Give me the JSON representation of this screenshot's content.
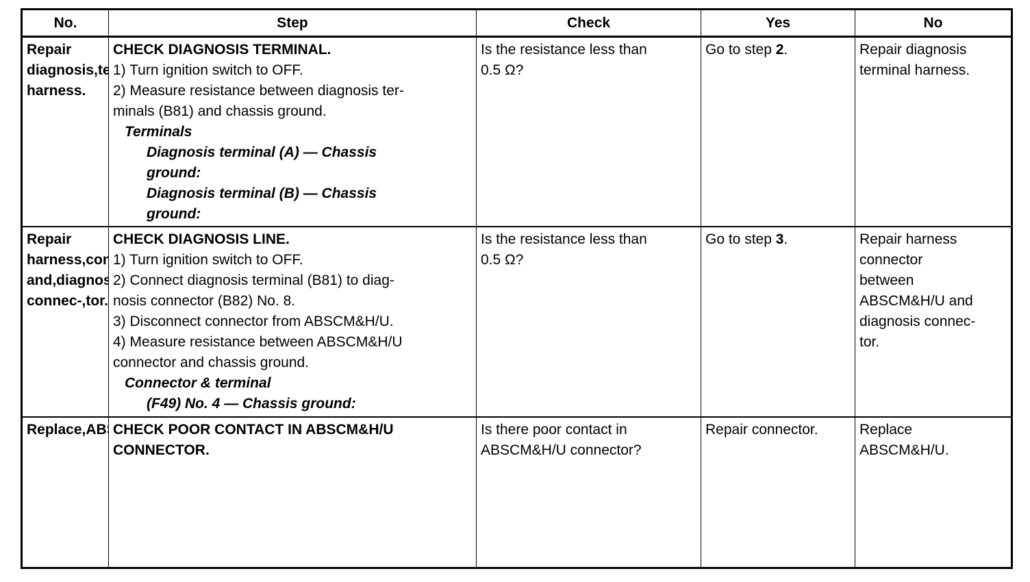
{
  "headers": {
    "no": "No.",
    "step": "Step",
    "check": "Check",
    "yes": "Yes",
    "no_col": "No"
  },
  "rows": [
    {
      "no": [
        "Repair diagnosis",
        "terminal harness."
      ],
      "title": "CHECK DIAGNOSIS TERMINAL.",
      "steps": [
        "1) Turn ignition switch to OFF.",
        "2) Measure resistance between diagnosis ter-",
        "minals (B81) and chassis ground."
      ],
      "spec_heading": "Terminals",
      "spec_lines": [
        "Diagnosis terminal (A) — Chassis",
        "ground:",
        "Diagnosis terminal (B) — Chassis",
        "ground:"
      ],
      "check": [
        "Is the resistance less than",
        "0.5 Ω?"
      ],
      "yes_prefix": "Go to step ",
      "yes_step": "2",
      "yes_suffix": "."
    },
    {
      "no": [
        "Repair harness",
        "connector",
        "between",
        "ABSCM&H/U and",
        "diagnosis connec-",
        "tor."
      ],
      "title": "CHECK DIAGNOSIS LINE.",
      "steps": [
        "1) Turn ignition switch to OFF.",
        "2) Connect diagnosis terminal (B81) to diag-",
        "nosis connector (B82) No. 8.",
        "3) Disconnect connector from ABSCM&H/U.",
        "4) Measure resistance between ABSCM&H/U",
        "connector and chassis ground."
      ],
      "spec_heading": "Connector & terminal",
      "spec_lines": [
        "(F49) No. 4 — Chassis ground:"
      ],
      "check": [
        "Is the resistance less than",
        "0.5 Ω?"
      ],
      "yes_prefix": "Go to step ",
      "yes_step": "3",
      "yes_suffix": "."
    },
    {
      "no": [
        "Replace",
        "ABSCM&H/U."
      ],
      "title_lines": [
        "CHECK POOR CONTACT IN ABSCM&H/U",
        "CONNECTOR."
      ],
      "check": [
        "Is there poor contact in",
        "ABSCM&H/U connector?"
      ],
      "yes": "Repair connector."
    }
  ]
}
